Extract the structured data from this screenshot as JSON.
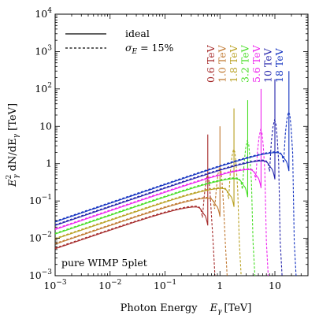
{
  "chart_data": {
    "type": "line",
    "xscale": "log",
    "yscale": "log",
    "xlim": [
      0.001,
      40
    ],
    "ylim": [
      0.001,
      10000
    ],
    "x_ticks": [
      {
        "value": 0.001,
        "base": "10",
        "exp": "−3"
      },
      {
        "value": 0.01,
        "base": "10",
        "exp": "−2"
      },
      {
        "value": 0.1,
        "base": "10",
        "exp": "−1"
      },
      {
        "value": 1,
        "text": "1"
      },
      {
        "value": 10,
        "text": "10"
      }
    ],
    "y_ticks": [
      {
        "value": 0.001,
        "base": "10",
        "exp": "−3"
      },
      {
        "value": 0.01,
        "base": "10",
        "exp": "−2"
      },
      {
        "value": 0.1,
        "base": "10",
        "exp": "−1"
      },
      {
        "value": 1,
        "text": "1"
      },
      {
        "value": 10,
        "text": "10"
      },
      {
        "value": 100,
        "base": "10",
        "exp": "2"
      },
      {
        "value": 1000,
        "base": "10",
        "exp": "3"
      },
      {
        "value": 10000,
        "base": "10",
        "exp": "4"
      }
    ],
    "xlabel_main": "Photon Energy",
    "xlabel_symbol": "E",
    "xlabel_sub": "γ",
    "xlabel_unit": "[TeV]",
    "ylabel": {
      "E": "E",
      "sub": "γ",
      "sup": "2",
      "rest": " dN/dE",
      "sub2": "γ",
      "unit": " [TeV]"
    },
    "legend": {
      "solid": "ideal",
      "dashed_sigma": "σ",
      "dashed_sub": "E",
      "dashed_rest": " = 15%"
    },
    "annotation": "pure WIMP 5plet",
    "series": [
      {
        "name": "0.6 TeV",
        "mass": 0.6,
        "color": "#a52a2a",
        "peak": 0.07,
        "line": 6
      },
      {
        "name": "1.0 TeV",
        "mass": 1.0,
        "color": "#c07830",
        "peak": 0.12,
        "line": 10
      },
      {
        "name": "1.8 TeV",
        "mass": 1.8,
        "color": "#b8a020",
        "peak": 0.22,
        "line": 30
      },
      {
        "name": "3.2 TeV",
        "mass": 3.2,
        "color": "#44dd22",
        "peak": 0.4,
        "line": 50
      },
      {
        "name": "5.6 TeV",
        "mass": 5.6,
        "color": "#ee22ee",
        "peak": 0.7,
        "line": 100
      },
      {
        "name": "10 TeV",
        "mass": 10,
        "color": "#2222aa",
        "peak": 1.2,
        "line": 180
      },
      {
        "name": "18 TeV",
        "mass": 18,
        "color": "#1030c0",
        "peak": 2.0,
        "line": 300
      }
    ]
  }
}
